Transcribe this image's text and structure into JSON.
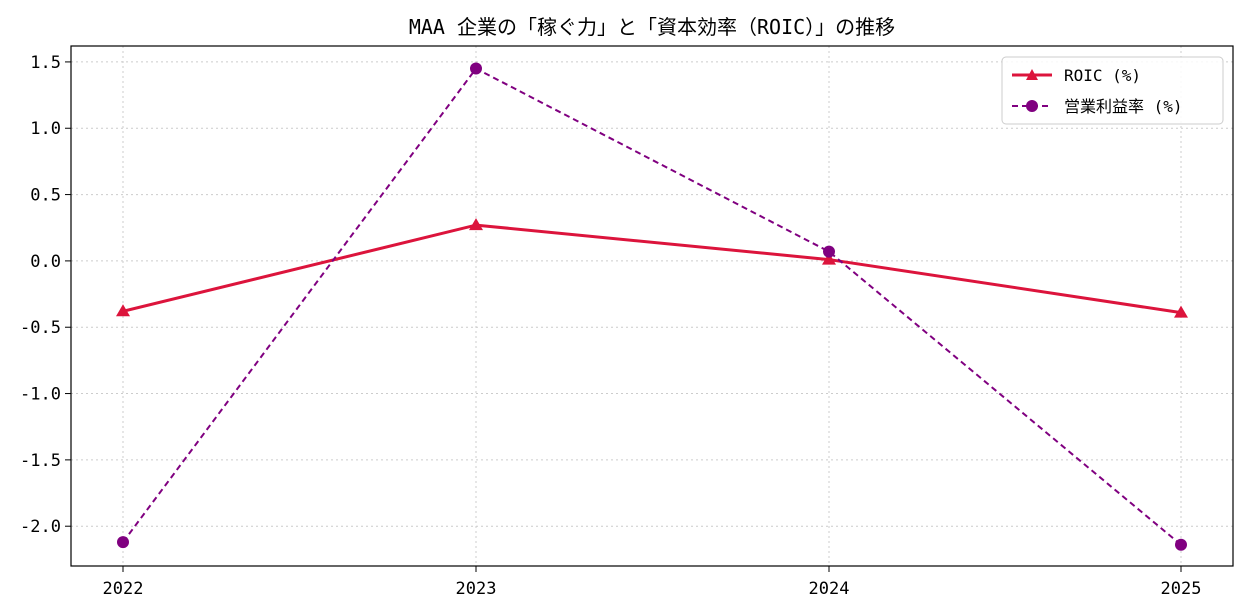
{
  "chart_data": {
    "type": "line",
    "title": "MAA 企業の「稼ぐ力」と「資本効率（ROIC）」の推移",
    "xlabel": "",
    "ylabel": "",
    "categories": [
      "2022",
      "2023",
      "2024",
      "2025"
    ],
    "ylim": [
      -2.3,
      1.62
    ],
    "yticks": [
      1.5,
      1.0,
      0.5,
      0.0,
      -0.5,
      -1.0,
      -1.5,
      -2.0
    ],
    "ytick_labels": [
      "1.5",
      "1.0",
      "0.5",
      "0.0",
      "-0.5",
      "-1.0",
      "-1.5",
      "-2.0"
    ],
    "grid": true,
    "legend_position": "top-right",
    "series": [
      {
        "name": "ROIC (%)",
        "values": [
          -0.38,
          0.27,
          0.01,
          -0.39
        ],
        "color": "#dc143c",
        "line_style": "solid",
        "marker": "triangle"
      },
      {
        "name": "営業利益率 (%)",
        "values": [
          -2.12,
          1.45,
          0.07,
          -2.14
        ],
        "color": "#800080",
        "line_style": "dashed",
        "marker": "circle"
      }
    ]
  }
}
